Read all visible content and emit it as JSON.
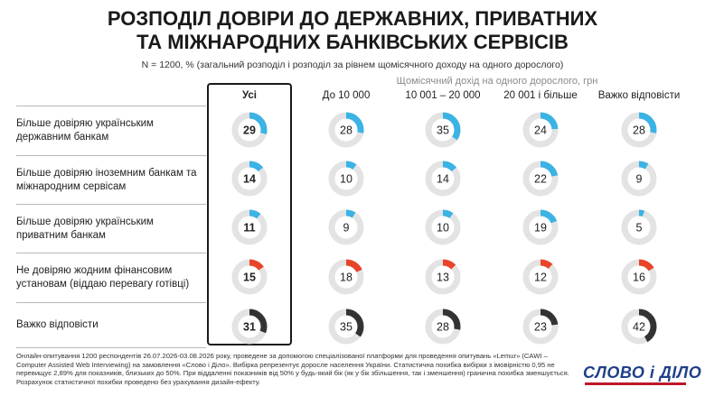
{
  "title_line1": "РОЗПОДІЛ ДОВІРИ ДО ДЕРЖАВНИХ, ПРИВАТНИХ",
  "title_line2": "ТА МІЖНАРОДНИХ БАНКІВСЬКИХ СЕРВІСІВ",
  "subtitle": "N = 1200, % (загальний розподіл і розподіл за рівнем щомісячного доходу на одного дорослого)",
  "group_label": "Щомісячний дохід на одного дорослого, грн",
  "colors": {
    "blue": "#3bb3e4",
    "red": "#e8442a",
    "dark": "#333333",
    "track": "#e3e3e3"
  },
  "chart_data": {
    "type": "donut-grid",
    "columns": [
      "Усі",
      "До 10 000",
      "10 001 – 20 000",
      "20 001 і більше",
      "Важко відповісти"
    ],
    "rows": [
      {
        "label": "Більше довіряю українським державним банкам",
        "color": "blue",
        "values": [
          29,
          28,
          35,
          24,
          28
        ]
      },
      {
        "label": "Більше довіряю іноземним банкам та міжнародним сервісам",
        "color": "blue",
        "values": [
          14,
          10,
          14,
          22,
          9
        ]
      },
      {
        "label": "Більше довіряю українським приватним банкам",
        "color": "blue",
        "values": [
          11,
          9,
          10,
          19,
          5
        ]
      },
      {
        "label": "Не довіряю жодним фінансовим установам (віддаю перевагу готівці)",
        "color": "red",
        "values": [
          15,
          18,
          13,
          12,
          16
        ]
      },
      {
        "label": "Важко відповісти",
        "color": "dark",
        "values": [
          31,
          35,
          28,
          23,
          42
        ]
      }
    ]
  },
  "footnote": "Онлайн-опитування 1200 респондентів 26.07.2026-03.08.2026 року, проведене за допомогою спеціалізованої платформи для проведення опитувань «Lemur» (CAWI – Computer Assisted Web Interviewing) на замовлення «Слово і Діло». Вибірка репрезентує доросле населення України. Статистична похибка вибірки з імовірністю 0,95 не перевищує 2,89% для показників, близьких до 50%. При віддаленні показників від 50% у будь-який бік (як у бік збільшення, так і зменшення) гранична похибка зменшується. Розрахунок статистичної похибки проведено без урахування дизайн-ефекту.",
  "logo": "СЛОВО і ДІЛО"
}
